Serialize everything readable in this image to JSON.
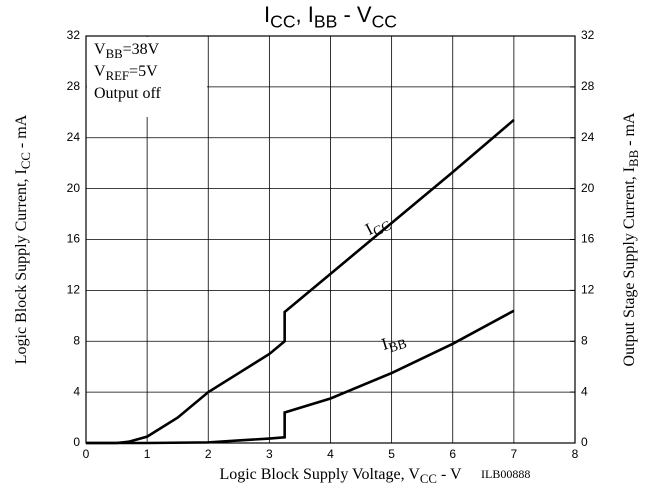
{
  "chart_data": {
    "type": "line",
    "title": [
      "I",
      "CC",
      ", I",
      "BB",
      " - V",
      "CC"
    ],
    "x_label": [
      "Logic Block Supply Voltage, V",
      "CC",
      " - V"
    ],
    "y_label": [
      "Logic Block Supply Current, I",
      "CC",
      " - mA"
    ],
    "y2_label": [
      "Output Stage Supply Current, I",
      "BB",
      " - mA"
    ],
    "figure_id": "ILB00888",
    "annotations": [
      [
        "V",
        "BB",
        "=38V"
      ],
      [
        "V",
        "REF",
        "=5V"
      ],
      [
        "Output off"
      ]
    ],
    "xlim": [
      0,
      8
    ],
    "xticks": [
      0,
      1,
      2,
      3,
      4,
      5,
      6,
      7,
      8
    ],
    "ylim": [
      0,
      32
    ],
    "yticks": [
      0,
      4,
      8,
      12,
      16,
      20,
      24,
      28,
      32
    ],
    "y2lim": [
      0,
      32
    ],
    "y2ticks": [
      0,
      4,
      8,
      12,
      16,
      20,
      24,
      28,
      32
    ],
    "grid": true,
    "series": [
      {
        "name": [
          "I",
          "CC"
        ],
        "color": "#000000",
        "axis": "y",
        "x": [
          0,
          0.5,
          0.7,
          1,
          1.5,
          2,
          2.5,
          3,
          3.25,
          3.25,
          4,
          5,
          6,
          7
        ],
        "values": [
          0,
          0,
          0.1,
          0.5,
          2,
          4,
          5.5,
          7,
          8,
          10.3,
          13.3,
          17.3,
          21.3,
          25.4
        ]
      },
      {
        "name": [
          "I",
          "BB"
        ],
        "color": "#000000",
        "axis": "y2",
        "x": [
          0,
          1,
          2,
          2.5,
          3,
          3.25,
          3.25,
          4,
          5,
          6,
          7
        ],
        "values": [
          0,
          0,
          0.05,
          0.2,
          0.35,
          0.45,
          2.4,
          3.5,
          5.5,
          7.8,
          10.4
        ]
      }
    ]
  }
}
